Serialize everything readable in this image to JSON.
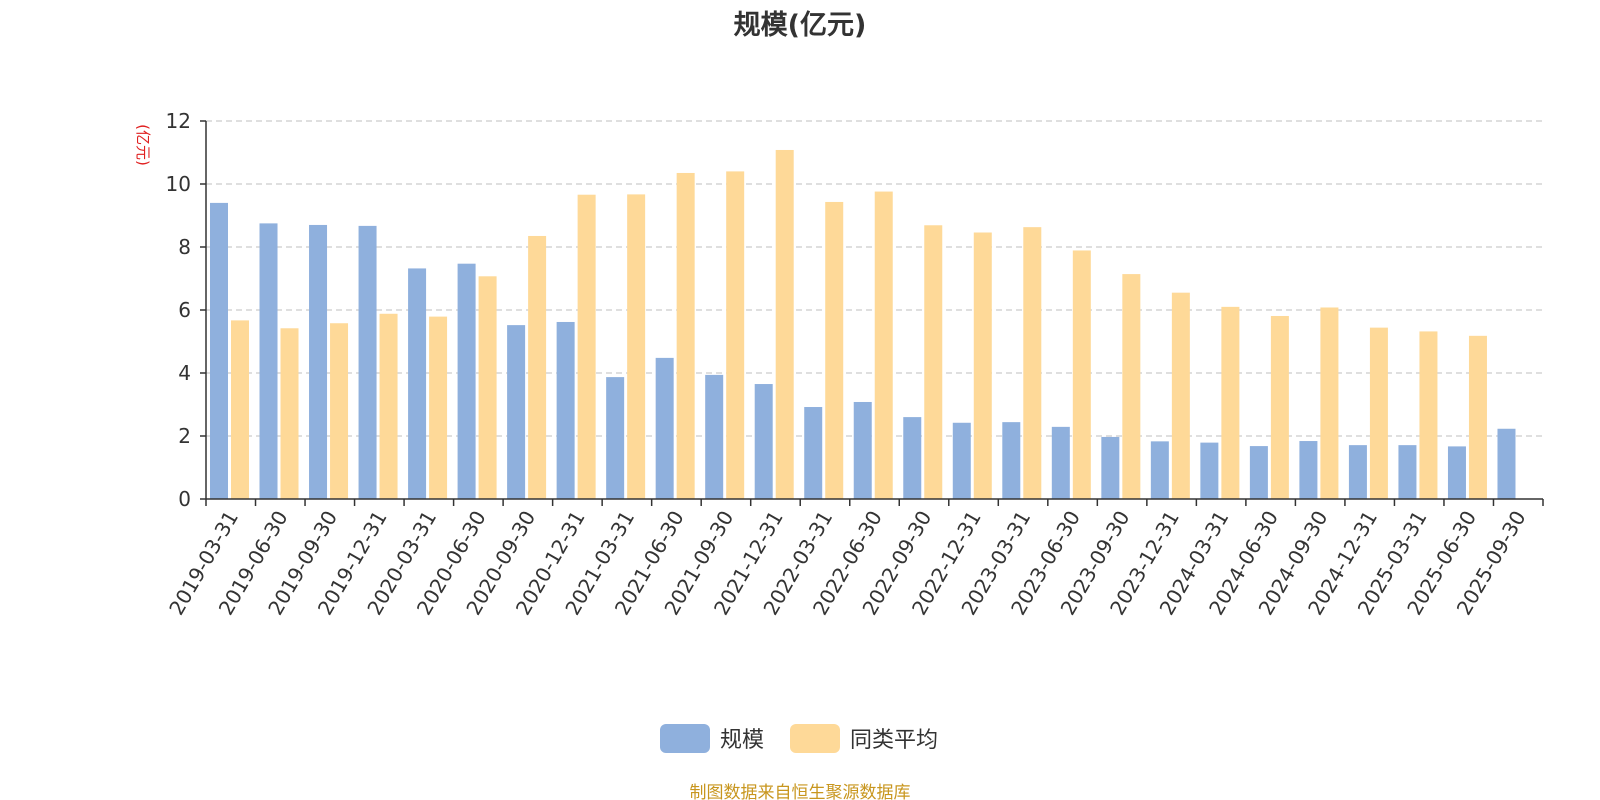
{
  "chart_data": {
    "type": "bar",
    "title": "规模(亿元)",
    "ylabel": "(亿元)",
    "xlabel": "",
    "ylim": [
      0,
      12
    ],
    "yticks": [
      0,
      2,
      4,
      6,
      8,
      10,
      12
    ],
    "grid": true,
    "legend_position": "bottom",
    "categories": [
      "2019-03-31",
      "2019-06-30",
      "2019-09-30",
      "2019-12-31",
      "2020-03-31",
      "2020-06-30",
      "2020-09-30",
      "2020-12-31",
      "2021-03-31",
      "2021-06-30",
      "2021-09-30",
      "2021-12-31",
      "2022-03-31",
      "2022-06-30",
      "2022-09-30",
      "2022-12-31",
      "2023-03-31",
      "2023-06-30",
      "2023-09-30",
      "2023-12-31",
      "2024-03-31",
      "2024-06-30",
      "2024-09-30",
      "2024-12-31",
      "2025-03-31",
      "2025-06-30",
      "2025-09-30"
    ],
    "series": [
      {
        "name": "规模",
        "color": "#8fb0dd",
        "values": [
          9.4,
          8.75,
          8.7,
          8.67,
          7.32,
          7.47,
          5.52,
          5.62,
          3.87,
          4.48,
          3.94,
          3.65,
          2.92,
          3.08,
          2.6,
          2.42,
          2.44,
          2.29,
          1.97,
          1.83,
          1.79,
          1.68,
          1.84,
          1.71,
          1.71,
          1.67,
          2.23
        ]
      },
      {
        "name": "同类平均",
        "color": "#fed998",
        "values": [
          5.67,
          5.42,
          5.58,
          5.88,
          5.79,
          7.07,
          8.35,
          9.66,
          9.67,
          10.35,
          10.4,
          11.08,
          9.43,
          9.76,
          8.69,
          8.46,
          8.63,
          7.89,
          7.14,
          6.55,
          6.1,
          5.81,
          6.08,
          5.44,
          5.32,
          5.18,
          null
        ]
      }
    ]
  },
  "source_note": "制图数据来自恒生聚源数据库"
}
